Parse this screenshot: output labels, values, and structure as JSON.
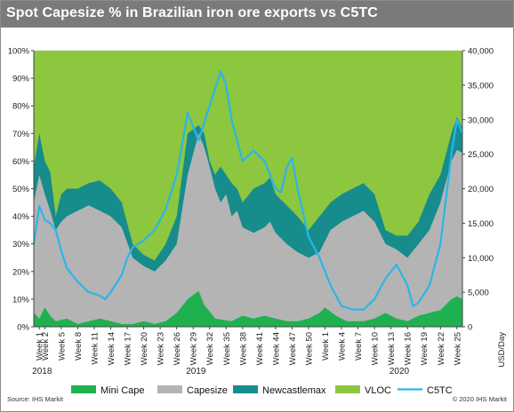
{
  "header": {
    "title": "Spot Capesize % in Brazilian iron ore exports vs C5TC"
  },
  "footer": {
    "source": "Source: IHS Markit",
    "copyright": "© 2020 IHS Markit"
  },
  "colors": {
    "header_bg": "#7a7a7a",
    "mini_cape": "#1fb14f",
    "capesize": "#b4b4b4",
    "newcastlemax": "#168c8c",
    "vloc": "#8dc63f",
    "c5tc": "#2cb5e8"
  },
  "chart_data": {
    "type": "area",
    "stacked": true,
    "y_left": {
      "min": 0,
      "max": 100,
      "unit": "%",
      "ticks": [
        "0%",
        "10%",
        "20%",
        "30%",
        "40%",
        "50%",
        "60%",
        "70%",
        "80%",
        "90%",
        "100%"
      ]
    },
    "y_right": {
      "min": 0,
      "max": 40000,
      "label": "USD/Day",
      "ticks": [
        "0",
        "5,000",
        "10,000",
        "15,000",
        "20,000",
        "25,000",
        "30,000",
        "35,000",
        "40,000"
      ]
    },
    "x_tick_labels": [
      "Week 1",
      "Week 2",
      "Week 5",
      "Week 8",
      "Week 11",
      "Week 14",
      "Week 17",
      "Week 20",
      "Week 23",
      "Week 26",
      "Week 29",
      "Week 32",
      "Week 35",
      "Week 38",
      "Week 41",
      "Week 44",
      "Week 47",
      "Week 50",
      "Week 1",
      "Week 4",
      "Week 7",
      "Week 10",
      "Week 13",
      "Week 16",
      "Week 19",
      "Week 22",
      "Week 25"
    ],
    "x_tick_weeks": [
      1,
      2,
      5,
      8,
      11,
      14,
      17,
      20,
      23,
      26,
      29,
      32,
      35,
      38,
      41,
      44,
      47,
      50,
      53,
      56,
      59,
      62,
      65,
      68,
      71,
      74,
      77
    ],
    "years": [
      {
        "label": "2018",
        "week": 1
      },
      {
        "label": "2019",
        "week": 29
      },
      {
        "label": "2020",
        "week": 66
      }
    ],
    "grid": false,
    "legend_position": "bottom",
    "series": [
      {
        "name": "Mini Cape",
        "kind": "area",
        "axis": "left",
        "points": [
          [
            0,
            5
          ],
          [
            1,
            3
          ],
          [
            2,
            7
          ],
          [
            3,
            4
          ],
          [
            4,
            2
          ],
          [
            6,
            3
          ],
          [
            8,
            1
          ],
          [
            10,
            2
          ],
          [
            12,
            3
          ],
          [
            14,
            2
          ],
          [
            16,
            1
          ],
          [
            18,
            1
          ],
          [
            20,
            2
          ],
          [
            22,
            1
          ],
          [
            24,
            2
          ],
          [
            26,
            5
          ],
          [
            28,
            10
          ],
          [
            30,
            13
          ],
          [
            31,
            8
          ],
          [
            33,
            3
          ],
          [
            36,
            2
          ],
          [
            38,
            4
          ],
          [
            40,
            3
          ],
          [
            42,
            4
          ],
          [
            44,
            3
          ],
          [
            46,
            2
          ],
          [
            48,
            2
          ],
          [
            50,
            3
          ],
          [
            52,
            5
          ],
          [
            53,
            7
          ],
          [
            55,
            4
          ],
          [
            57,
            2
          ],
          [
            60,
            2
          ],
          [
            62,
            3
          ],
          [
            64,
            5
          ],
          [
            66,
            3
          ],
          [
            68,
            2
          ],
          [
            70,
            4
          ],
          [
            72,
            5
          ],
          [
            74,
            6
          ],
          [
            76,
            10
          ],
          [
            77,
            11
          ],
          [
            78,
            10
          ]
        ]
      },
      {
        "name": "Capesize",
        "kind": "area",
        "axis": "left",
        "points": [
          [
            0,
            45
          ],
          [
            1,
            55
          ],
          [
            2,
            48
          ],
          [
            3,
            42
          ],
          [
            4,
            35
          ],
          [
            5,
            38
          ],
          [
            6,
            40
          ],
          [
            8,
            42
          ],
          [
            10,
            44
          ],
          [
            12,
            42
          ],
          [
            14,
            40
          ],
          [
            16,
            36
          ],
          [
            18,
            25
          ],
          [
            20,
            22
          ],
          [
            22,
            20
          ],
          [
            24,
            24
          ],
          [
            26,
            30
          ],
          [
            28,
            55
          ],
          [
            30,
            70
          ],
          [
            31,
            65
          ],
          [
            32,
            58
          ],
          [
            33,
            50
          ],
          [
            34,
            45
          ],
          [
            35,
            48
          ],
          [
            36,
            40
          ],
          [
            37,
            42
          ],
          [
            38,
            36
          ],
          [
            40,
            34
          ],
          [
            42,
            36
          ],
          [
            43,
            38
          ],
          [
            44,
            34
          ],
          [
            46,
            30
          ],
          [
            48,
            27
          ],
          [
            50,
            25
          ],
          [
            52,
            27
          ],
          [
            54,
            35
          ],
          [
            56,
            38
          ],
          [
            58,
            40
          ],
          [
            60,
            42
          ],
          [
            62,
            38
          ],
          [
            64,
            30
          ],
          [
            66,
            28
          ],
          [
            68,
            25
          ],
          [
            70,
            30
          ],
          [
            72,
            35
          ],
          [
            74,
            45
          ],
          [
            76,
            60
          ],
          [
            77,
            64
          ],
          [
            78,
            63
          ]
        ]
      },
      {
        "name": "Newcastlemax",
        "kind": "area",
        "axis": "left",
        "points": [
          [
            0,
            58
          ],
          [
            1,
            70
          ],
          [
            2,
            60
          ],
          [
            3,
            56
          ],
          [
            4,
            40
          ],
          [
            5,
            48
          ],
          [
            6,
            50
          ],
          [
            8,
            50
          ],
          [
            10,
            52
          ],
          [
            12,
            53
          ],
          [
            14,
            50
          ],
          [
            16,
            45
          ],
          [
            18,
            30
          ],
          [
            20,
            26
          ],
          [
            22,
            24
          ],
          [
            24,
            30
          ],
          [
            26,
            40
          ],
          [
            28,
            70
          ],
          [
            30,
            73
          ],
          [
            31,
            70
          ],
          [
            32,
            60
          ],
          [
            33,
            55
          ],
          [
            34,
            58
          ],
          [
            35,
            55
          ],
          [
            36,
            52
          ],
          [
            37,
            50
          ],
          [
            38,
            45
          ],
          [
            40,
            50
          ],
          [
            42,
            52
          ],
          [
            43,
            54
          ],
          [
            44,
            48
          ],
          [
            46,
            44
          ],
          [
            48,
            40
          ],
          [
            50,
            35
          ],
          [
            52,
            40
          ],
          [
            54,
            45
          ],
          [
            56,
            48
          ],
          [
            58,
            50
          ],
          [
            60,
            52
          ],
          [
            62,
            48
          ],
          [
            64,
            35
          ],
          [
            66,
            33
          ],
          [
            68,
            33
          ],
          [
            70,
            38
          ],
          [
            72,
            48
          ],
          [
            74,
            55
          ],
          [
            76,
            70
          ],
          [
            77,
            76
          ],
          [
            78,
            72
          ]
        ]
      },
      {
        "name": "VLOC",
        "kind": "area",
        "axis": "left",
        "points": [
          [
            0,
            100
          ],
          [
            78,
            100
          ]
        ]
      },
      {
        "name": "C5TC",
        "kind": "line",
        "axis": "right",
        "points": [
          [
            0,
            12000
          ],
          [
            1,
            17500
          ],
          [
            2,
            15500
          ],
          [
            3,
            15000
          ],
          [
            4,
            14000
          ],
          [
            5,
            11000
          ],
          [
            6,
            8500
          ],
          [
            8,
            6500
          ],
          [
            10,
            5000
          ],
          [
            12,
            4500
          ],
          [
            13,
            4000
          ],
          [
            14,
            5000
          ],
          [
            16,
            7500
          ],
          [
            17,
            10000
          ],
          [
            18,
            11500
          ],
          [
            20,
            12500
          ],
          [
            22,
            14000
          ],
          [
            24,
            17000
          ],
          [
            26,
            22000
          ],
          [
            28,
            31000
          ],
          [
            30,
            27000
          ],
          [
            32,
            32000
          ],
          [
            34,
            37000
          ],
          [
            35,
            35000
          ],
          [
            36,
            30000
          ],
          [
            37,
            27000
          ],
          [
            38,
            24000
          ],
          [
            40,
            25500
          ],
          [
            42,
            24000
          ],
          [
            44,
            20000
          ],
          [
            45,
            19500
          ],
          [
            46,
            23000
          ],
          [
            47,
            24500
          ],
          [
            48,
            20000
          ],
          [
            50,
            13000
          ],
          [
            52,
            10000
          ],
          [
            54,
            6000
          ],
          [
            56,
            3000
          ],
          [
            58,
            2500
          ],
          [
            60,
            2500
          ],
          [
            62,
            4000
          ],
          [
            64,
            7000
          ],
          [
            66,
            9000
          ],
          [
            68,
            6000
          ],
          [
            69,
            3000
          ],
          [
            70,
            3500
          ],
          [
            72,
            6000
          ],
          [
            74,
            12000
          ],
          [
            76,
            25000
          ],
          [
            77,
            30000
          ],
          [
            78,
            28000
          ]
        ]
      }
    ]
  }
}
